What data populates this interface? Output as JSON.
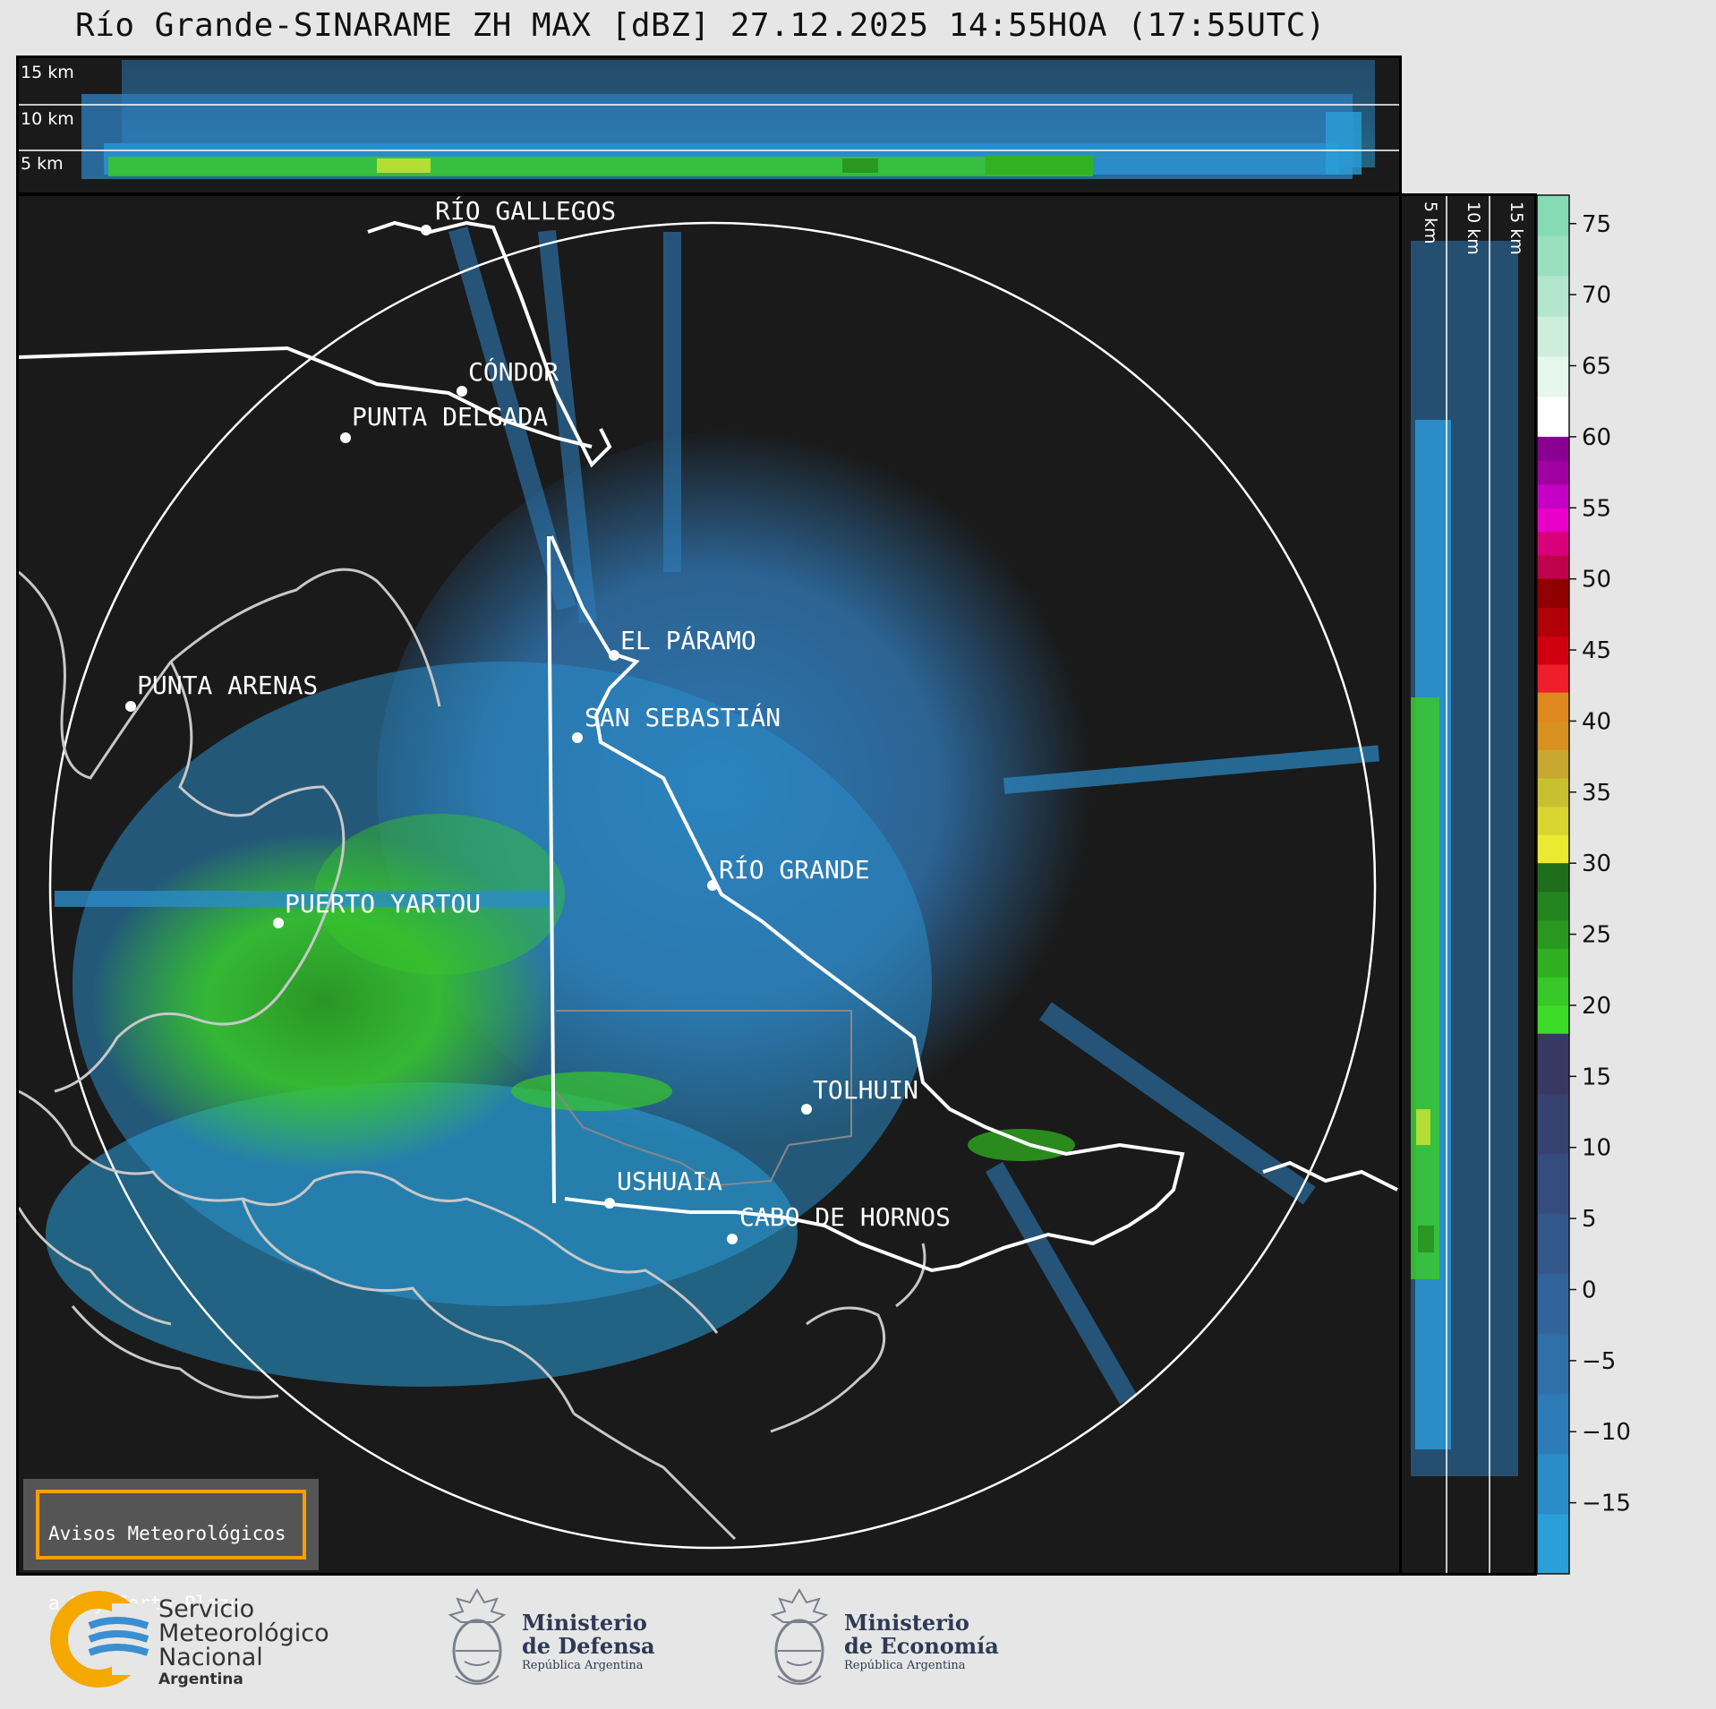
{
  "title": "Río Grande-SINARAME ZH MAX [dBZ] 27.12.2025 14:55HOA (17:55UTC)",
  "top_profile": {
    "height_labels": [
      "15 km",
      "10 km",
      "5 km"
    ]
  },
  "side_profile": {
    "height_labels": [
      "5 km",
      "10 km",
      "15 km"
    ]
  },
  "colorbar": {
    "ticks": [
      "75",
      "70",
      "65",
      "60",
      "55",
      "50",
      "45",
      "40",
      "35",
      "30",
      "25",
      "20",
      "15",
      "10",
      "5",
      "0",
      "−5",
      "−10",
      "−15"
    ],
    "range": [
      -20,
      77
    ],
    "stops": [
      {
        "from": 60,
        "to": 77,
        "colors": [
          "#ffffff",
          "#e6f7ee",
          "#cdeedd",
          "#b3e6cc",
          "#9ae0bf",
          "#86dbb4"
        ]
      },
      {
        "from": 50,
        "to": 60,
        "colors": [
          "#c0004a",
          "#d8007a",
          "#e800c8",
          "#c400c4",
          "#a000a0",
          "#8a0090"
        ]
      },
      {
        "from": 42,
        "to": 50,
        "colors": [
          "#f01e2a",
          "#d00010",
          "#b00008",
          "#900000"
        ]
      },
      {
        "from": 30,
        "to": 42,
        "colors": [
          "#eaea30",
          "#d8d430",
          "#c8c030",
          "#c8a830",
          "#d89020",
          "#e08820"
        ]
      },
      {
        "from": 18,
        "to": 30,
        "colors": [
          "#3cdc28",
          "#38c828",
          "#30b020",
          "#2a9820",
          "#248420",
          "#1e6e1c"
        ]
      },
      {
        "from": -20,
        "to": 18,
        "colors": [
          "#2a9fd8",
          "#2b8cc8",
          "#2d7cb8",
          "#2f70a8",
          "#31649a",
          "#33588c",
          "#354c7e",
          "#374270",
          "#393862"
        ]
      }
    ]
  },
  "map": {
    "cities": [
      {
        "name": "RÍO GALLEGOS"
      },
      {
        "name": "CÓNDOR"
      },
      {
        "name": "PUNTA DELGADA"
      },
      {
        "name": "EL PÁRAMO"
      },
      {
        "name": "PUNTA ARENAS"
      },
      {
        "name": "SAN SEBASTIÁN"
      },
      {
        "name": "RÍO GRANDE"
      },
      {
        "name": "PUERTO YARTOU"
      },
      {
        "name": "TOLHUIN"
      },
      {
        "name": "USHUAIA"
      },
      {
        "name": "CABO DE HORNOS"
      }
    ]
  },
  "notice": {
    "line1": "Avisos Meteorológicos",
    "line2": "a Muy Corto Plazo"
  },
  "logos": {
    "smn": {
      "line1": "Servicio",
      "line2": "Meteorológico",
      "line3": "Nacional",
      "line4": "Argentina"
    },
    "defensa": {
      "line1": "Ministerio",
      "line2": "de Defensa",
      "line3": "República Argentina"
    },
    "economia": {
      "line1": "Ministerio",
      "line2": "de Economía",
      "line3": "República Argentina"
    }
  }
}
